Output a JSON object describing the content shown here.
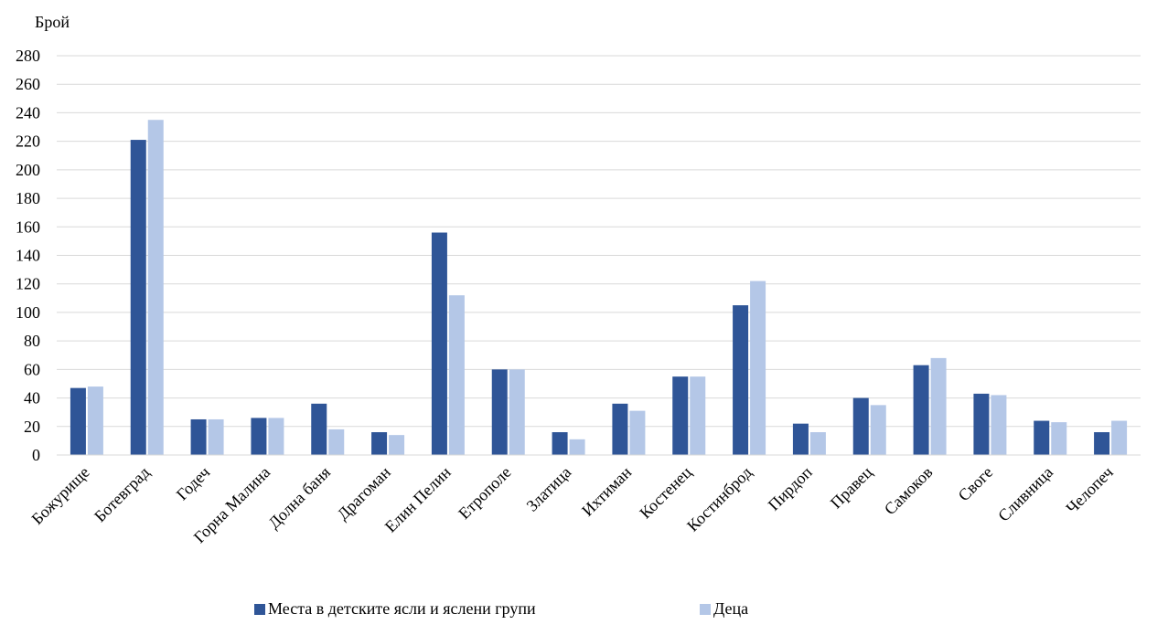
{
  "chart_data": {
    "type": "bar",
    "title": "",
    "ylabel": "Брой",
    "xlabel": "",
    "ylim": [
      0,
      280
    ],
    "ytick_step": 20,
    "grid": true,
    "legend_position": "bottom",
    "categories": [
      "Божурище",
      "Ботевград",
      "Годеч",
      "Горна Малина",
      "Долна баня",
      "Драгоман",
      "Елин Пелин",
      "Етрополе",
      "Златица",
      "Ихтиман",
      "Костенец",
      "Костинброд",
      "Пирдоп",
      "Правец",
      "Самоков",
      "Своге",
      "Сливница",
      "Челопеч"
    ],
    "series": [
      {
        "name": "Места в детските ясли и яслени групи",
        "color": "#2f5597",
        "values": [
          47,
          221,
          25,
          26,
          36,
          16,
          156,
          60,
          16,
          36,
          55,
          105,
          22,
          40,
          63,
          43,
          24,
          16
        ]
      },
      {
        "name": "Деца",
        "color": "#b4c7e7",
        "values": [
          48,
          235,
          25,
          26,
          18,
          14,
          112,
          60,
          11,
          31,
          55,
          122,
          16,
          35,
          68,
          42,
          23,
          24
        ]
      }
    ]
  }
}
